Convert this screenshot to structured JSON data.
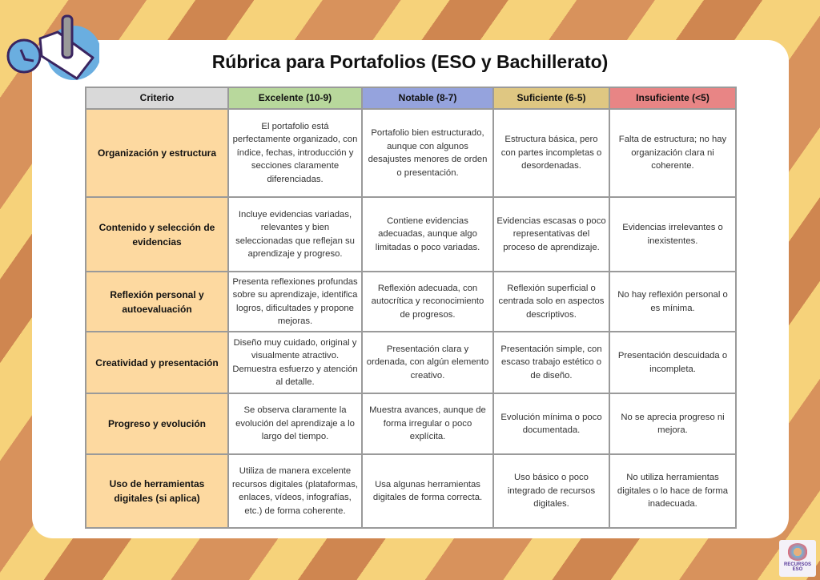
{
  "title": "Rúbrica para Portafolios (ESO y Bachillerato)",
  "colors": {
    "criterio": "#d9d9d9",
    "excelente": "#b8d89c",
    "notable": "#95a3dd",
    "suficiente": "#dfc782",
    "insuficiente": "#e88585",
    "criterion_cell": "#fdd9a0"
  },
  "headers": [
    "Criterio",
    "Excelente (10-9)",
    "Notable (8-7)",
    "Suficiente (6-5)",
    "Insuficiente (<5)"
  ],
  "rows": [
    {
      "criterion": "Organización y estructura",
      "cells": [
        "El portafolio está perfectamente organizado, con índice, fechas, introducción y secciones claramente diferenciadas.",
        "Portafolio bien estructurado, aunque con algunos desajustes menores de orden o presentación.",
        "Estructura básica, pero con partes incompletas o desordenadas.",
        "Falta de estructura; no hay organización clara ni coherente."
      ]
    },
    {
      "criterion": "Contenido y selección de evidencias",
      "cells": [
        "Incluye evidencias variadas, relevantes y bien seleccionadas que reflejan su aprendizaje y progreso.",
        "Contiene evidencias adecuadas, aunque algo limitadas o poco variadas.",
        "Evidencias escasas o poco representativas del proceso de aprendizaje.",
        "Evidencias irrelevantes o inexistentes."
      ]
    },
    {
      "criterion": "Reflexión personal y autoevaluación",
      "cells": [
        "Presenta reflexiones profundas sobre su aprendizaje, identifica logros, dificultades y propone mejoras.",
        "Reflexión adecuada, con autocrítica y reconocimiento de progresos.",
        "Reflexión superficial o centrada solo en aspectos descriptivos.",
        "No hay reflexión personal o es mínima."
      ]
    },
    {
      "criterion": "Creatividad y presentación",
      "cells": [
        "Diseño muy cuidado, original y visualmente atractivo. Demuestra esfuerzo y atención al detalle.",
        "Presentación clara y ordenada, con algún elemento creativo.",
        "Presentación simple, con escaso trabajo estético o de diseño.",
        "Presentación descuidada o incompleta."
      ]
    },
    {
      "criterion": "Progreso y evolución",
      "cells": [
        "Se observa claramente la evolución del aprendizaje a lo largo del tiempo.",
        "Muestra avances, aunque de forma irregular o poco explícita.",
        "Evolución mínima o poco documentada.",
        "No se aprecia progreso ni mejora."
      ]
    },
    {
      "criterion": "Uso de herramientas digitales (si aplica)",
      "cells": [
        "Utiliza de manera excelente recursos digitales (plataformas, enlaces, vídeos, infografías, etc.) de forma coherente.",
        "Usa algunas herramientas digitales de forma correcta.",
        "Uso básico o poco integrado de recursos digitales.",
        "No utiliza herramientas digitales o lo hace de forma inadecuada."
      ]
    }
  ],
  "logo": {
    "text": "RECURSOS ESO",
    "icon": "clock-document-pen-icon"
  }
}
